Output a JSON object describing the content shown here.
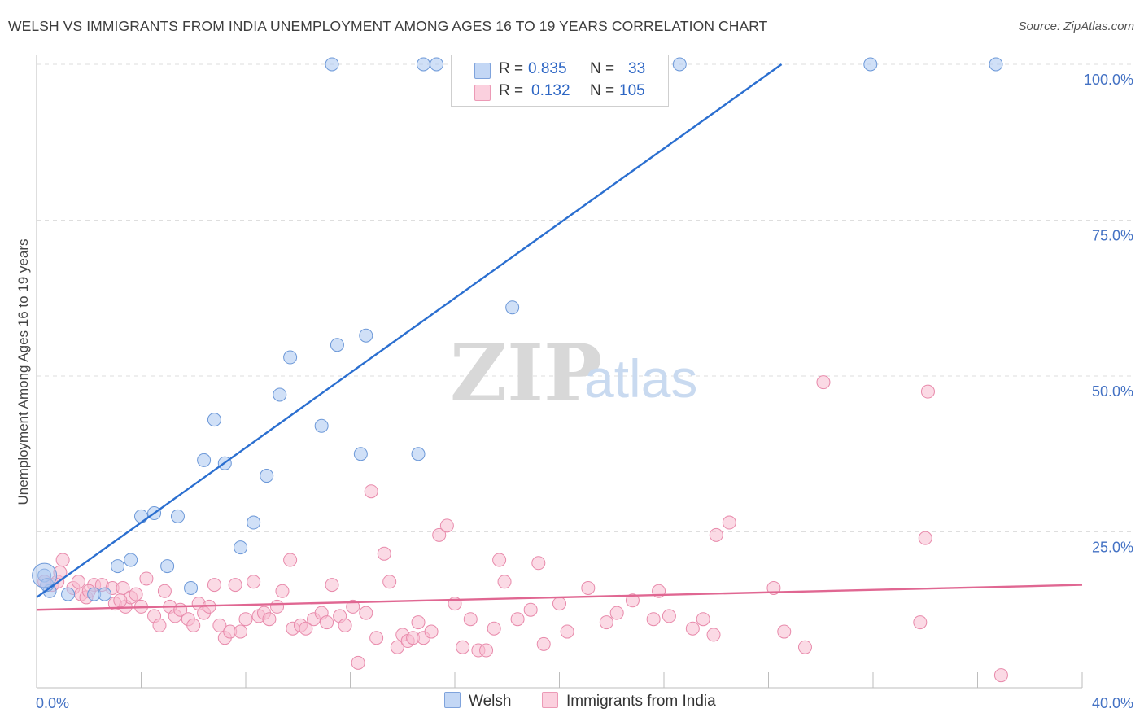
{
  "chart_data": {
    "type": "scatter",
    "title": "WELSH VS IMMIGRANTS FROM INDIA UNEMPLOYMENT AMONG AGES 16 TO 19 YEARS CORRELATION CHART",
    "source": "Source: ZipAtlas.com",
    "xlabel": "",
    "ylabel": "Unemployment Among Ages 16 to 19 years",
    "xlim": [
      0,
      40
    ],
    "ylim": [
      0,
      100
    ],
    "x_tick_labels": [
      "0.0%",
      "40.0%"
    ],
    "y_tick_labels": [
      "25.0%",
      "50.0%",
      "75.0%",
      "100.0%"
    ],
    "y_ticks": [
      25,
      50,
      75,
      100
    ],
    "watermark": {
      "part1": "ZIP",
      "part2": "atlas"
    },
    "legend": {
      "rows": [
        {
          "r_label": "R =",
          "r_value": "0.835",
          "n_label": "N =",
          "n_value": "33"
        },
        {
          "r_label": "R =",
          "r_value": "0.132",
          "n_label": "N =",
          "n_value": "105"
        }
      ]
    },
    "series": [
      {
        "name": "Welsh",
        "color": "#a9c6f0",
        "stroke": "#6c98d8",
        "trend_color": "#2b6fd0",
        "trend": {
          "x0": 0,
          "y0": 14.5,
          "x1": 28.5,
          "y1": 100
        },
        "points": [
          [
            0.3,
            18
          ],
          [
            0.5,
            15.5
          ],
          [
            1.2,
            15
          ],
          [
            2.2,
            15
          ],
          [
            2.6,
            15
          ],
          [
            3.1,
            19.5
          ],
          [
            3.6,
            20.5
          ],
          [
            4.0,
            27.5
          ],
          [
            4.5,
            28
          ],
          [
            5.0,
            19.5
          ],
          [
            5.4,
            27.5
          ],
          [
            5.9,
            16
          ],
          [
            6.8,
            43
          ],
          [
            6.4,
            36.5
          ],
          [
            7.2,
            36
          ],
          [
            7.8,
            22.5
          ],
          [
            8.3,
            26.5
          ],
          [
            8.8,
            34
          ],
          [
            9.3,
            47
          ],
          [
            9.7,
            53
          ],
          [
            10.9,
            42
          ],
          [
            11.5,
            55
          ],
          [
            12.4,
            37.5
          ],
          [
            12.6,
            56.5
          ],
          [
            14.6,
            37.5
          ],
          [
            18.2,
            61
          ],
          [
            11.3,
            100
          ],
          [
            14.8,
            100
          ],
          [
            15.3,
            100
          ],
          [
            24.6,
            100
          ],
          [
            31.9,
            100
          ],
          [
            36.7,
            100
          ],
          [
            0.4,
            16.5
          ]
        ]
      },
      {
        "name": "Immigrants from India",
        "color": "#f8bcd0",
        "stroke": "#e88aab",
        "trend_color": "#e06792",
        "trend": {
          "x0": 0,
          "y0": 12.5,
          "x1": 40,
          "y1": 16.5
        },
        "points": [
          [
            0.3,
            17
          ],
          [
            0.6,
            16.5
          ],
          [
            0.8,
            17
          ],
          [
            1.0,
            20.5
          ],
          [
            1.4,
            16
          ],
          [
            1.7,
            15
          ],
          [
            1.9,
            14.5
          ],
          [
            2.2,
            16.5
          ],
          [
            2.5,
            16.5
          ],
          [
            2.9,
            16
          ],
          [
            3.0,
            13.5
          ],
          [
            3.3,
            16
          ],
          [
            3.4,
            13
          ],
          [
            3.6,
            14.5
          ],
          [
            3.8,
            15
          ],
          [
            4.0,
            13
          ],
          [
            4.2,
            17.5
          ],
          [
            4.5,
            11.5
          ],
          [
            4.7,
            10
          ],
          [
            4.9,
            15.5
          ],
          [
            5.1,
            13
          ],
          [
            5.3,
            11.5
          ],
          [
            5.5,
            12.5
          ],
          [
            5.8,
            11
          ],
          [
            6.0,
            10
          ],
          [
            6.2,
            13.5
          ],
          [
            6.4,
            12
          ],
          [
            6.6,
            13
          ],
          [
            6.8,
            16.5
          ],
          [
            7.0,
            10
          ],
          [
            7.2,
            8
          ],
          [
            7.4,
            9
          ],
          [
            7.6,
            16.5
          ],
          [
            7.8,
            9
          ],
          [
            8.0,
            11
          ],
          [
            8.3,
            17
          ],
          [
            8.5,
            11.5
          ],
          [
            8.7,
            12
          ],
          [
            8.9,
            11
          ],
          [
            9.2,
            13
          ],
          [
            9.4,
            15.5
          ],
          [
            9.7,
            20.5
          ],
          [
            9.8,
            9.5
          ],
          [
            10.1,
            10
          ],
          [
            10.3,
            9.5
          ],
          [
            10.6,
            11
          ],
          [
            10.9,
            12
          ],
          [
            11.1,
            10.5
          ],
          [
            11.3,
            16.5
          ],
          [
            11.6,
            11.5
          ],
          [
            11.8,
            10
          ],
          [
            12.1,
            13
          ],
          [
            12.3,
            4
          ],
          [
            12.6,
            12
          ],
          [
            12.8,
            31.5
          ],
          [
            13.0,
            8
          ],
          [
            13.3,
            21.5
          ],
          [
            13.5,
            17
          ],
          [
            13.8,
            6.5
          ],
          [
            14.0,
            8.5
          ],
          [
            14.2,
            7.5
          ],
          [
            14.4,
            8
          ],
          [
            14.6,
            10.5
          ],
          [
            14.8,
            8
          ],
          [
            15.1,
            9
          ],
          [
            15.4,
            24.5
          ],
          [
            15.7,
            26
          ],
          [
            16.0,
            13.5
          ],
          [
            16.3,
            6.5
          ],
          [
            16.6,
            11
          ],
          [
            16.9,
            6
          ],
          [
            17.2,
            6
          ],
          [
            17.5,
            9.5
          ],
          [
            17.7,
            20.5
          ],
          [
            17.9,
            17
          ],
          [
            18.4,
            11
          ],
          [
            18.9,
            12.5
          ],
          [
            19.2,
            20
          ],
          [
            19.4,
            7
          ],
          [
            20.0,
            13.5
          ],
          [
            20.3,
            9
          ],
          [
            21.1,
            16
          ],
          [
            21.8,
            10.5
          ],
          [
            22.2,
            12
          ],
          [
            22.8,
            14
          ],
          [
            23.8,
            15.5
          ],
          [
            23.6,
            11
          ],
          [
            24.2,
            11.5
          ],
          [
            25.1,
            9.5
          ],
          [
            25.5,
            11
          ],
          [
            25.9,
            8.5
          ],
          [
            26.0,
            24.5
          ],
          [
            26.5,
            26.5
          ],
          [
            28.2,
            16
          ],
          [
            28.6,
            9
          ],
          [
            29.4,
            6.5
          ],
          [
            30.1,
            49
          ],
          [
            33.8,
            10.5
          ],
          [
            34.0,
            24
          ],
          [
            34.1,
            47.5
          ],
          [
            36.9,
            2
          ],
          [
            0.9,
            18.5
          ],
          [
            1.6,
            17
          ],
          [
            2.0,
            15.5
          ],
          [
            3.2,
            14
          ]
        ]
      }
    ]
  }
}
